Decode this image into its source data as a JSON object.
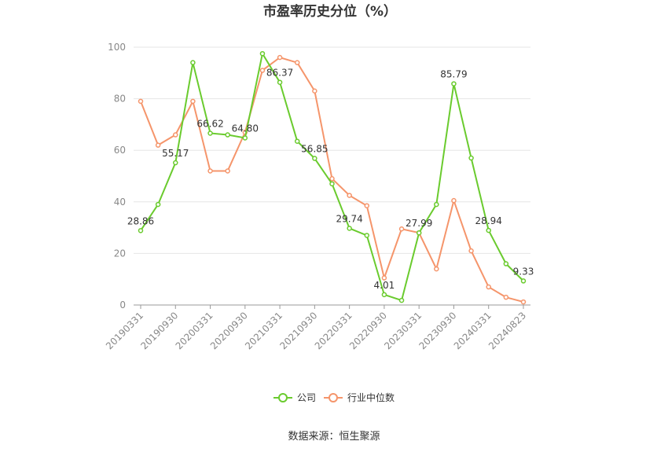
{
  "chart_data": {
    "type": "line",
    "title": "市盈率历史分位（%）",
    "ylim": [
      0,
      100
    ],
    "yticks": [
      0,
      20,
      40,
      60,
      80,
      100
    ],
    "x": [
      "20190331",
      "20190630",
      "20190930",
      "20191231",
      "20200331",
      "20200630",
      "20200930",
      "20201231",
      "20210331",
      "20210630",
      "20210930",
      "20211231",
      "20220331",
      "20220630",
      "20220930",
      "20221231",
      "20230331",
      "20230630",
      "20230930",
      "20231231",
      "20240331",
      "20240630",
      "20240823"
    ],
    "xtick_labels": [
      "20190331",
      "20190930",
      "20200331",
      "20200930",
      "20210331",
      "20210930",
      "20220331",
      "20220930",
      "20230331",
      "20230930",
      "20240331",
      "20240823"
    ],
    "series": [
      {
        "name": "公司",
        "color": "#6acb2e",
        "values": [
          28.86,
          39,
          55.17,
          94,
          66.62,
          66,
          64.8,
          97.5,
          86.37,
          63.5,
          56.85,
          47,
          29.74,
          27,
          4.01,
          1.8,
          27.99,
          39,
          85.79,
          57,
          28.94,
          16,
          9.33
        ],
        "labels": {
          "0": "28.86",
          "2": "55.17",
          "4": "66.62",
          "6": "64.80",
          "8": "86.37",
          "10": "56.85",
          "12": "29.74",
          "14": "4.01",
          "16": "27.99",
          "18": "85.79",
          "20": "28.94",
          "22": "9.33"
        }
      },
      {
        "name": "行业中位数",
        "color": "#f5956b",
        "values": [
          79,
          62,
          66,
          79,
          52,
          52,
          67,
          91,
          96,
          94,
          83,
          49,
          42.5,
          38.5,
          10.5,
          29.5,
          28,
          14,
          40.5,
          21,
          7,
          3,
          1.2
        ]
      }
    ],
    "legend": [
      "公司",
      "行业中位数"
    ]
  },
  "footer": {
    "source": "数据来源：恒生聚源"
  }
}
